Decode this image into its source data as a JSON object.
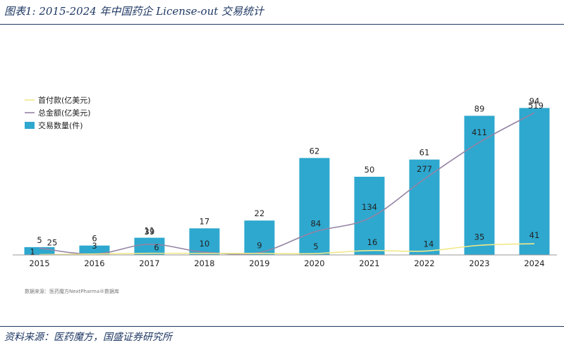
{
  "figure_title": "图表1:  2015-2024 年中国药企 License-out 交易统计",
  "footer": "资料来源：医药魔方，国盛证券研究所",
  "inner_source": "数据来源：医药魔方NextPharma®数据库",
  "chart_data": {
    "type": "bar",
    "categories": [
      "2015",
      "2016",
      "2017",
      "2018",
      "2019",
      "2020",
      "2021",
      "2022",
      "2023",
      "2024"
    ],
    "series": [
      {
        "name": "交易数量(件)",
        "type": "bar",
        "color": "#2ea8cf",
        "values": [
          5,
          6,
          11,
          17,
          22,
          62,
          50,
          61,
          89,
          94
        ]
      },
      {
        "name": "总金额(亿美元)",
        "type": "line",
        "color": "#9484a4",
        "values": [
          25,
          3,
          39,
          10,
          9,
          84,
          134,
          277,
          411,
          519
        ]
      },
      {
        "name": "首付款(亿美元)",
        "type": "line",
        "color": "#f2e88a",
        "values": [
          1,
          null,
          6,
          null,
          null,
          5,
          16,
          14,
          35,
          41
        ]
      }
    ],
    "legend": [
      "首付款(亿美元)",
      "总金额(亿美元)",
      "交易数量(件)"
    ],
    "legend_position": "top-left",
    "grid": false,
    "bar_axis_max": 100,
    "line_axis_max": 550
  }
}
